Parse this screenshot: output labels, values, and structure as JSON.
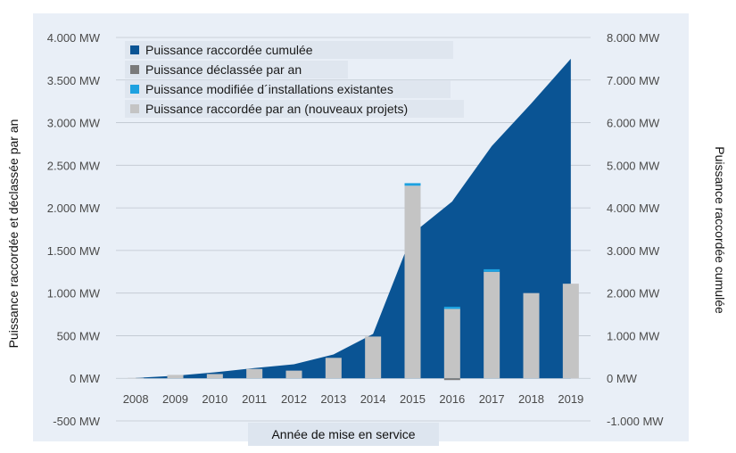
{
  "chart_data": {
    "type": "bar",
    "categories": [
      "2008",
      "2009",
      "2010",
      "2011",
      "2012",
      "2013",
      "2014",
      "2015",
      "2016",
      "2017",
      "2018",
      "2019"
    ],
    "series": [
      {
        "name": "Puissance raccordée cumulée",
        "kind": "area",
        "axis": "right",
        "color": "#0a5494",
        "values": [
          10,
          60,
          140,
          240,
          330,
          560,
          1040,
          3400,
          4150,
          5450,
          6450,
          7500
        ]
      },
      {
        "name": "Puissance déclassée par an",
        "kind": "bar",
        "axis": "left",
        "color": "#7a7a7a",
        "values": [
          0,
          0,
          0,
          0,
          0,
          0,
          0,
          0,
          -15,
          0,
          0,
          0
        ]
      },
      {
        "name": "Puissance modifiée d´installations existantes",
        "kind": "bar",
        "axis": "left",
        "color": "#1da1e0",
        "values": [
          0,
          0,
          0,
          0,
          0,
          0,
          0,
          30,
          20,
          30,
          0,
          0
        ]
      },
      {
        "name": "Puissance raccordée par an (nouveaux projets)",
        "kind": "bar",
        "axis": "left",
        "color": "#c4c4c4",
        "values": [
          5,
          40,
          50,
          110,
          90,
          240,
          490,
          2260,
          820,
          1250,
          1000,
          1110
        ]
      }
    ],
    "y_left": {
      "label": "Puissance raccordée et déclassée par an",
      "range": [
        -500,
        4000
      ],
      "ticks": [
        "-500 MW",
        "0 MW",
        "500 MW",
        "1.000 MW",
        "1.500 MW",
        "2.000 MW",
        "2.500 MW",
        "3.000 MW",
        "3.500 MW",
        "4.000 MW"
      ]
    },
    "y_right": {
      "label": "Puissance raccordée cumulée",
      "range": [
        -1000,
        8000
      ],
      "ticks": [
        "-1.000 MW",
        "0 MW",
        "1.000 MW",
        "2.000 MW",
        "3.000 MW",
        "4.000 MW",
        "5.000 MW",
        "6.000 MW",
        "7.000 MW",
        "8.000 MW"
      ]
    },
    "xlabel": "Année de mise en service",
    "grid": true,
    "legend": "top-left"
  }
}
